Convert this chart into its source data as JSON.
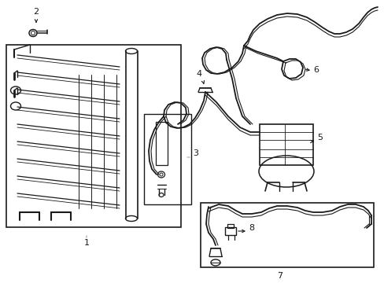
{
  "bg_color": "#ffffff",
  "line_color": "#1a1a1a",
  "gray": "#999999",
  "fig_width": 4.89,
  "fig_height": 3.6,
  "dpi": 100
}
